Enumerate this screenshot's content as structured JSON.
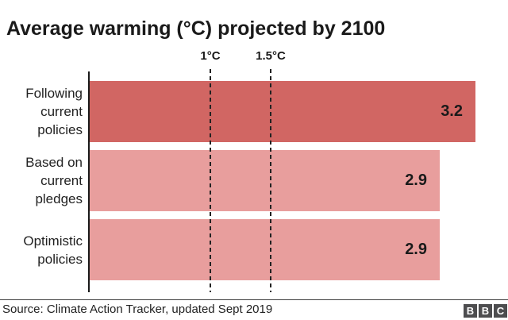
{
  "title": "Average warming (°C) projected by 2100",
  "chart_data": {
    "type": "bar",
    "orientation": "horizontal",
    "title": "Average warming (°C) projected by 2100",
    "categories": [
      "Following current policies",
      "Based on current pledges",
      "Optimistic policies"
    ],
    "values": [
      3.2,
      2.9,
      2.9
    ],
    "value_labels": [
      "3.2",
      "2.9",
      "2.9"
    ],
    "bar_colors": [
      "#d16663",
      "#e89e9d",
      "#e89e9d"
    ],
    "reference_lines": [
      {
        "label": "1°C",
        "value": 1
      },
      {
        "label": "1.5°C",
        "value": 1.5
      }
    ],
    "xlim": [
      0,
      3.47
    ],
    "grid": false,
    "legend": false
  },
  "footer": {
    "source": "Source: Climate Action Tracker, updated Sept 2019",
    "logo_letters": [
      "B",
      "B",
      "C"
    ]
  },
  "colors": {
    "bar_dark": "#d16663",
    "bar_light": "#e89e9d",
    "axis": "#1a1a1a",
    "text": "#222222",
    "logo_block": "#4d4d4f"
  }
}
